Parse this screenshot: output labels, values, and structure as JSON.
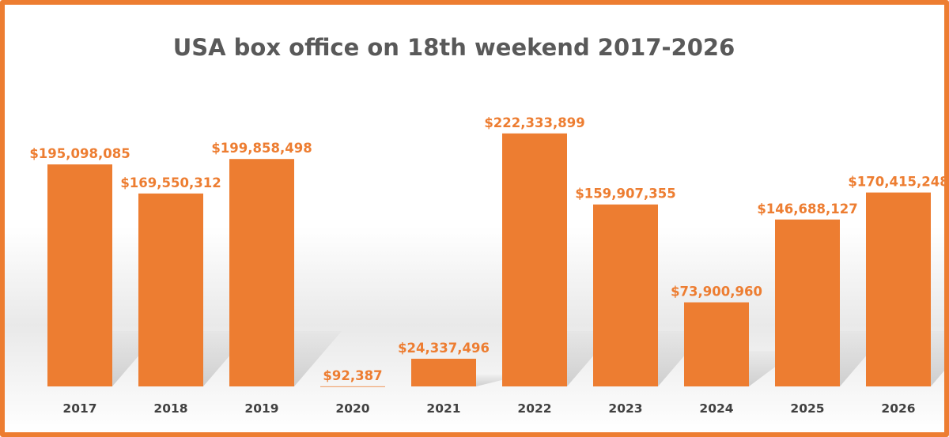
{
  "chart_data": {
    "type": "bar",
    "title": "USA box office on 18th weekend 2017-2026",
    "xlabel": "",
    "ylabel": "",
    "categories": [
      "2017",
      "2018",
      "2019",
      "2020",
      "2021",
      "2022",
      "2023",
      "2024",
      "2025",
      "2026"
    ],
    "values": [
      195098085,
      169550312,
      199858498,
      92387,
      24337496,
      222333899,
      159907355,
      73900960,
      146688127,
      170415248
    ],
    "data_labels": [
      "$195,098,085",
      "$169,550,312",
      "$199,858,498",
      "$92,387",
      "$24,337,496",
      "$222,333,899",
      "$159,907,355",
      "$73,900,960",
      "$146,688,127",
      "$170,415,248"
    ],
    "ylim": [
      0,
      250000000
    ],
    "grid": false,
    "legend": "none",
    "bar_color": "#ed7d31",
    "label_color": "#ed7d31",
    "border_color": "#ed7d31"
  }
}
